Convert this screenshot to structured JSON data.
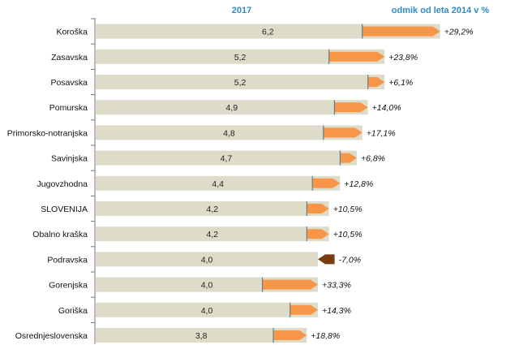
{
  "chart_data": {
    "type": "bar",
    "headers": {
      "value": "2017",
      "change": "odmik od leta 2014 v %"
    },
    "categories": [
      "Koroška",
      "Zasavska",
      "Posavska",
      "Pomurska",
      "Primorsko-notranjska",
      "Savinjska",
      "Jugovzhodna",
      "SLOVENIJA",
      "Obalno kraška",
      "Podravska",
      "Gorenjska",
      "Goriška",
      "Osrednjeslovenska"
    ],
    "values": [
      6.2,
      5.2,
      5.2,
      4.9,
      4.8,
      4.7,
      4.4,
      4.2,
      4.2,
      4.0,
      4.0,
      4.0,
      3.8
    ],
    "value_labels": [
      "6,2",
      "5,2",
      "5,2",
      "4,9",
      "4,8",
      "4,7",
      "4,4",
      "4,2",
      "4,2",
      "4,0",
      "4,0",
      "4,0",
      "3,8"
    ],
    "change_percent": [
      29.2,
      23.8,
      6.1,
      14.0,
      17.1,
      6.8,
      12.8,
      10.5,
      10.5,
      -7.0,
      33.3,
      14.3,
      18.8
    ],
    "change_labels": [
      "+29,2%",
      "+23,8%",
      "+6,1%",
      "+14,0%",
      "+17,1%",
      "+6,8%",
      "+12,8%",
      "+10,5%",
      "+10,5%",
      "-7,0%",
      "+33,3%",
      "+14,3%",
      "+18,8%"
    ],
    "xlim": [
      0,
      7
    ],
    "colors": {
      "bar": "#dedbc9",
      "increase": "#f79646",
      "decrease": "#7a3c0e",
      "header": "#2e8bc4",
      "axis": "#777777",
      "baseline_marker": "#5f7f8f"
    }
  }
}
